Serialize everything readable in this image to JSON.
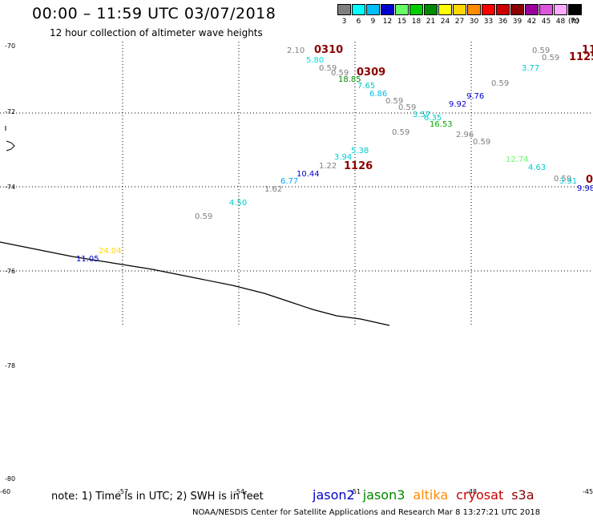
{
  "header": {
    "title": "00:00 – 11:59 UTC 03/07/2018",
    "subtitle": "12 hour collection of altimeter wave heights"
  },
  "legend": {
    "unit": "(ft)",
    "bins": [
      {
        "label": "3",
        "color": "#7f7f7f"
      },
      {
        "label": "6",
        "color": "#00ffff"
      },
      {
        "label": "9",
        "color": "#00bfff"
      },
      {
        "label": "12",
        "color": "#0000cd"
      },
      {
        "label": "15",
        "color": "#66ff66"
      },
      {
        "label": "18",
        "color": "#00cc00"
      },
      {
        "label": "21",
        "color": "#008800"
      },
      {
        "label": "24",
        "color": "#ffff00"
      },
      {
        "label": "27",
        "color": "#ffd700"
      },
      {
        "label": "30",
        "color": "#ff8c00"
      },
      {
        "label": "33",
        "color": "#ff0000"
      },
      {
        "label": "36",
        "color": "#cc0000"
      },
      {
        "label": "39",
        "color": "#8b0000"
      },
      {
        "label": "42",
        "color": "#990099"
      },
      {
        "label": "45",
        "color": "#dd55dd"
      },
      {
        "label": "48",
        "color": "#ffaaff"
      },
      {
        "label": "70",
        "color": "#000000"
      }
    ]
  },
  "axes": {
    "lat_labels": [
      "-70",
      "-72",
      "-74",
      "-76",
      "-78",
      "-80"
    ],
    "lon_labels": [
      "-60",
      "-57",
      "-54",
      "-51",
      "-48",
      "-45"
    ]
  },
  "observations": [
    {
      "v": "2.10",
      "c": "#7f7f7f"
    },
    {
      "v": "5.80",
      "c": "#00dddd"
    },
    {
      "v": "0.59",
      "c": "#7f7f7f"
    },
    {
      "v": "0.59",
      "c": "#7f7f7f"
    },
    {
      "v": "18.85",
      "c": "#008800"
    },
    {
      "v": "7.65",
      "c": "#00cccc"
    },
    {
      "v": "6.86",
      "c": "#00bbee"
    },
    {
      "v": "0.59",
      "c": "#7f7f7f"
    },
    {
      "v": "0.59",
      "c": "#7f7f7f"
    },
    {
      "v": "3.57",
      "c": "#00cccc"
    },
    {
      "v": "6.35",
      "c": "#00cccc"
    },
    {
      "v": "16.53",
      "c": "#00aa00"
    },
    {
      "v": "0.59",
      "c": "#7f7f7f"
    },
    {
      "v": "2.96",
      "c": "#7f7f7f"
    },
    {
      "v": "0.59",
      "c": "#7f7f7f"
    },
    {
      "v": "9.92",
      "c": "#0000cd"
    },
    {
      "v": "9.76",
      "c": "#0000cd"
    },
    {
      "v": "0.59",
      "c": "#7f7f7f"
    },
    {
      "v": "3.77",
      "c": "#00cccc"
    },
    {
      "v": "0.59",
      "c": "#7f7f7f"
    },
    {
      "v": "0.59",
      "c": "#7f7f7f"
    },
    {
      "v": "5.38",
      "c": "#00cccc"
    },
    {
      "v": "3.94",
      "c": "#00cccc"
    },
    {
      "v": "1.22",
      "c": "#7f7f7f"
    },
    {
      "v": "10.44",
      "c": "#0000cd"
    },
    {
      "v": "6.77",
      "c": "#00aaee"
    },
    {
      "v": "1.62",
      "c": "#7f7f7f"
    },
    {
      "v": "4.50",
      "c": "#00cccc"
    },
    {
      "v": "0.59",
      "c": "#7f7f7f"
    },
    {
      "v": "12.74",
      "c": "#66ff66"
    },
    {
      "v": "4.63",
      "c": "#00cccc"
    },
    {
      "v": "0.59",
      "c": "#7f7f7f"
    },
    {
      "v": "3.91",
      "c": "#00cccc"
    },
    {
      "v": "9.98",
      "c": "#0000cd"
    },
    {
      "v": "24.04",
      "c": "#ffd700"
    },
    {
      "v": "11.05",
      "c": "#0000cd"
    }
  ],
  "time_labels": [
    {
      "v": "0310",
      "c": "#8b0000"
    },
    {
      "v": "0309",
      "c": "#8b0000"
    },
    {
      "v": "1126",
      "c": "#8b0000"
    },
    {
      "v": "11",
      "c": "#8b0000"
    },
    {
      "v": "1125",
      "c": "#8b0000"
    },
    {
      "v": "0",
      "c": "#8b0000"
    }
  ],
  "note": "note: 1) Time is in UTC; 2) SWH is in feet",
  "satellites": [
    {
      "name": "jason2",
      "color": "#0000cd"
    },
    {
      "name": "jason3",
      "color": "#008800"
    },
    {
      "name": "altika",
      "color": "#ff8c00"
    },
    {
      "name": "cryosat",
      "color": "#cc0000"
    },
    {
      "name": "s3a",
      "color": "#8b0000"
    }
  ],
  "credit": "NOAA/NESDIS Center for Satellite Applications and Research    Mar  8 13:27:21 UTC 2018"
}
